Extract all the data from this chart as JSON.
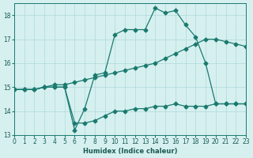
{
  "xlabel": "Humidex (Indice chaleur)",
  "ylabel": "",
  "background_color": "#d6f0f0",
  "grid_color": "#b0d8d8",
  "line_color": "#1a7a6e",
  "xlim": [
    0,
    23
  ],
  "ylim": [
    13,
    18.5
  ],
  "yticks": [
    13,
    14,
    15,
    16,
    17,
    18
  ],
  "xticks": [
    0,
    1,
    2,
    3,
    4,
    5,
    6,
    7,
    8,
    9,
    10,
    11,
    12,
    13,
    14,
    15,
    16,
    17,
    18,
    19,
    20,
    21,
    22,
    23
  ],
  "series1_x": [
    0,
    1,
    2,
    3,
    4,
    5,
    6,
    7,
    8,
    9,
    10,
    11,
    12,
    13,
    14,
    15,
    16,
    17,
    18,
    19,
    20,
    21,
    22,
    23
  ],
  "series1_y": [
    14.9,
    14.9,
    14.9,
    15.0,
    15.0,
    15.0,
    13.2,
    14.1,
    15.5,
    15.6,
    17.2,
    17.4,
    17.4,
    17.4,
    18.3,
    18.1,
    18.2,
    17.6,
    17.1,
    16.0,
    14.3,
    14.3,
    14.3,
    14.3
  ],
  "series2_x": [
    0,
    1,
    2,
    3,
    4,
    5,
    6,
    7,
    8,
    9,
    10,
    11,
    12,
    13,
    14,
    15,
    16,
    17,
    18,
    19,
    20,
    21,
    22,
    23
  ],
  "series2_y": [
    14.9,
    14.9,
    14.9,
    15.0,
    15.0,
    15.0,
    13.5,
    13.5,
    13.6,
    13.8,
    14.0,
    14.0,
    14.1,
    14.1,
    14.2,
    14.2,
    14.3,
    14.2,
    14.2,
    14.2,
    14.3,
    14.3,
    14.3,
    14.3
  ],
  "series3_x": [
    0,
    1,
    2,
    3,
    4,
    5,
    6,
    7,
    8,
    9,
    10,
    11,
    12,
    13,
    14,
    15,
    16,
    17,
    18,
    19,
    20,
    21,
    22,
    23
  ],
  "series3_y": [
    14.9,
    14.9,
    14.9,
    15.0,
    15.1,
    15.1,
    15.2,
    15.3,
    15.4,
    15.5,
    15.6,
    15.7,
    15.8,
    15.9,
    16.0,
    16.2,
    16.4,
    16.6,
    16.8,
    17.0,
    17.0,
    16.9,
    16.8,
    16.7
  ]
}
